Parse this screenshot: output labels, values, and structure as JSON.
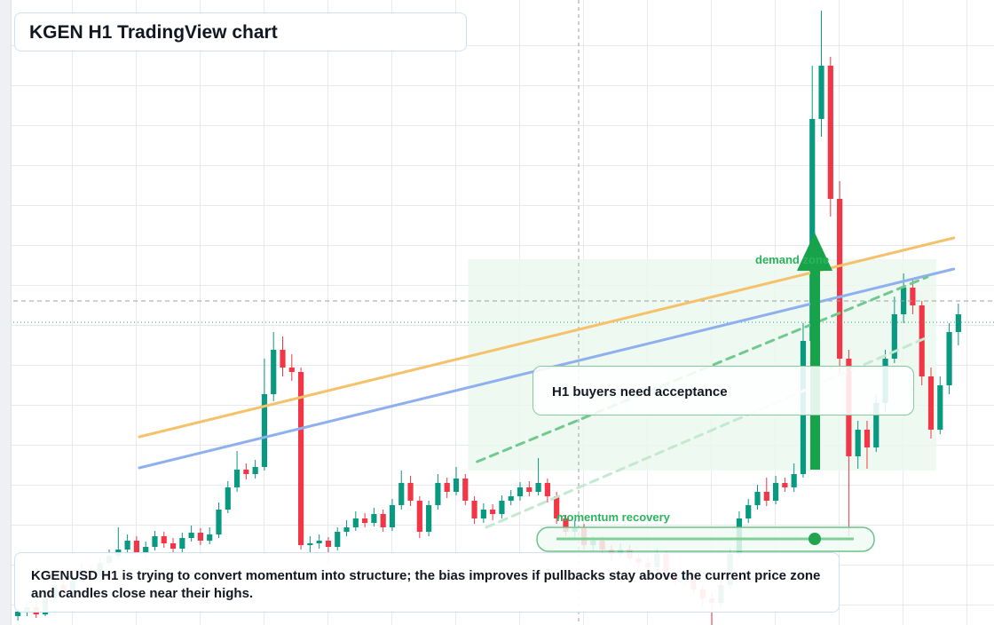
{
  "header": {
    "title": "KGEN H1 TradingView chart"
  },
  "caption": "KGENUSD H1 is trying to convert momentum into structure; the bias improves if pullbacks stay above the current price zone and candles close near their highs.",
  "chart_data": {
    "type": "candlestick",
    "up_color": "#089981",
    "down_color": "#f23645",
    "ylim": [
      0,
      70.4
    ],
    "open": [
      1.0,
      1.5,
      2.0,
      1.2,
      3.0,
      4.5,
      3.8,
      5.0,
      6.2,
      5.5,
      7.0,
      7.8,
      8.5,
      9.5,
      8.2,
      8.8,
      10.0,
      9.2,
      8.6,
      9.8,
      10.4,
      9.5,
      10.2,
      13.0,
      15.5,
      17.5,
      17.0,
      17.8,
      26.0,
      31.0,
      29.0,
      28.5,
      9.0,
      9.2,
      9.5,
      8.8,
      10.5,
      11.0,
      12.0,
      11.5,
      12.5,
      11.0,
      13.5,
      16.0,
      14.0,
      10.5,
      13.5,
      16.0,
      15.0,
      16.5,
      14.0,
      12.0,
      13.0,
      12.5,
      14.0,
      14.5,
      15.5,
      15.0,
      16.0,
      14.5,
      12.0,
      10.5,
      11.0,
      9.0,
      9.5,
      8.5,
      8.0,
      8.5,
      7.5,
      7.0,
      6.5,
      8.0,
      6.0,
      5.0,
      5.5,
      4.0,
      3.0,
      2.5,
      4.5,
      8.0,
      12.0,
      13.5,
      15.0,
      14.0,
      16.0,
      15.5,
      17.0,
      32.0,
      57.0,
      63.0,
      48.0,
      30.0,
      19.0,
      22.0,
      20.0,
      25.0,
      30.0,
      35.0,
      38.0,
      36.0,
      28.0,
      22.0,
      27.0,
      33.0
    ],
    "high": [
      2.0,
      2.6,
      2.4,
      3.5,
      5.2,
      5.0,
      5.6,
      7.0,
      6.8,
      7.6,
      8.5,
      11.0,
      10.2,
      10.0,
      9.4,
      10.6,
      10.5,
      9.8,
      10.4,
      11.2,
      10.9,
      11.0,
      13.8,
      16.2,
      19.6,
      18.2,
      18.6,
      30.0,
      33.0,
      32.5,
      30.5,
      29.0,
      10.0,
      10.2,
      9.9,
      11.0,
      11.8,
      12.8,
      12.6,
      13.2,
      13.0,
      14.2,
      17.4,
      16.8,
      14.5,
      14.0,
      17.0,
      16.6,
      17.8,
      17.0,
      14.5,
      13.7,
      13.6,
      14.6,
      15.2,
      16.1,
      16.2,
      18.8,
      16.5,
      15.0,
      12.4,
      11.8,
      11.4,
      10.0,
      10.0,
      9.0,
      9.2,
      9.0,
      8.0,
      7.6,
      8.6,
      8.4,
      6.5,
      6.2,
      6.0,
      4.5,
      3.6,
      5.0,
      8.6,
      12.8,
      14.2,
      15.8,
      16.6,
      16.8,
      16.6,
      18.2,
      34.0,
      63.0,
      69.2,
      64.0,
      50.0,
      31.0,
      23.0,
      23.0,
      26.0,
      31.0,
      37.0,
      39.6,
      39.0,
      36.5,
      29.0,
      28.0,
      34.0,
      36.2
    ],
    "low": [
      0.5,
      1.0,
      0.8,
      1.0,
      2.6,
      3.3,
      3.5,
      4.7,
      5.0,
      5.2,
      6.6,
      7.4,
      8.0,
      7.8,
      7.6,
      8.4,
      8.7,
      8.0,
      8.2,
      9.4,
      9.0,
      9.1,
      9.8,
      12.6,
      15.0,
      16.4,
      16.5,
      17.4,
      25.2,
      28.0,
      27.5,
      8.5,
      8.2,
      8.6,
      7.0,
      8.4,
      10.0,
      10.6,
      11.0,
      11.1,
      10.5,
      10.6,
      13.0,
      13.4,
      9.8,
      10.0,
      13.0,
      14.3,
      14.6,
      13.5,
      11.4,
      11.5,
      11.8,
      12.0,
      13.5,
      14.0,
      14.5,
      14.6,
      13.8,
      11.4,
      10.0,
      9.8,
      8.5,
      8.3,
      8.0,
      7.2,
      7.6,
      7.0,
      6.4,
      6.0,
      6.1,
      5.4,
      4.5,
      4.6,
      3.4,
      2.2,
      0.0,
      2.0,
      4.0,
      7.6,
      11.5,
      13.0,
      13.4,
      13.6,
      15.0,
      15.0,
      16.6,
      31.0,
      55.0,
      46.0,
      28.0,
      10.0,
      17.6,
      17.6,
      19.5,
      24.0,
      29.5,
      34.0,
      35.0,
      27.0,
      21.0,
      21.5,
      26.0,
      31.5
    ],
    "close": [
      1.5,
      2.0,
      1.2,
      3.0,
      4.5,
      3.8,
      5.0,
      6.2,
      5.5,
      7.0,
      7.8,
      8.5,
      9.5,
      8.2,
      8.8,
      10.0,
      9.2,
      8.6,
      9.8,
      10.4,
      9.5,
      10.2,
      13.0,
      15.5,
      17.5,
      17.0,
      17.8,
      26.0,
      31.0,
      29.0,
      28.5,
      9.0,
      9.2,
      9.5,
      8.8,
      10.5,
      11.0,
      12.0,
      11.5,
      12.5,
      11.0,
      13.5,
      16.0,
      14.0,
      10.5,
      13.5,
      16.0,
      15.0,
      16.5,
      14.0,
      12.0,
      13.0,
      12.5,
      14.0,
      14.5,
      15.5,
      15.0,
      16.0,
      14.5,
      12.0,
      10.5,
      11.0,
      9.0,
      9.5,
      8.5,
      8.0,
      8.5,
      7.5,
      7.0,
      6.5,
      8.0,
      6.0,
      5.0,
      5.5,
      4.0,
      3.0,
      2.5,
      4.5,
      8.0,
      12.0,
      13.5,
      15.0,
      14.0,
      16.0,
      15.5,
      17.0,
      32.0,
      57.0,
      63.0,
      48.0,
      30.0,
      19.0,
      22.0,
      20.0,
      25.0,
      30.0,
      35.0,
      38.0,
      36.0,
      28.0,
      22.0,
      27.0,
      33.0,
      35.0
    ],
    "trendlines": [
      {
        "color": "#f5c26b",
        "dash": false,
        "x": [
          13.3,
          102.5
        ],
        "y": [
          21.2,
          43.6
        ]
      },
      {
        "color": "#8fb0ee",
        "dash": false,
        "x": [
          13.3,
          102.5
        ],
        "y": [
          17.7,
          40.1
        ]
      },
      {
        "color": "#72c98f",
        "dash": true,
        "x": [
          50.3,
          99.6
        ],
        "y": [
          18.4,
          39.2
        ]
      },
      {
        "color": "#c4e8d0",
        "dash": true,
        "x": [
          51.3,
          99.6
        ],
        "y": [
          11.0,
          32.4
        ]
      }
    ],
    "hlines": [
      {
        "color": "#9aa0a8",
        "value": 36.5
      },
      {
        "color": "#2aa56a",
        "value": 34.1
      }
    ],
    "zone": {
      "x": [
        49.3,
        100.6
      ],
      "y": [
        17.4,
        41.2
      ],
      "color": "#eaf7ee"
    },
    "annotations": {
      "zone_label": "demand zone",
      "callout": "H1 buyers need acceptance",
      "momentum_label": "momentum recovery"
    }
  }
}
